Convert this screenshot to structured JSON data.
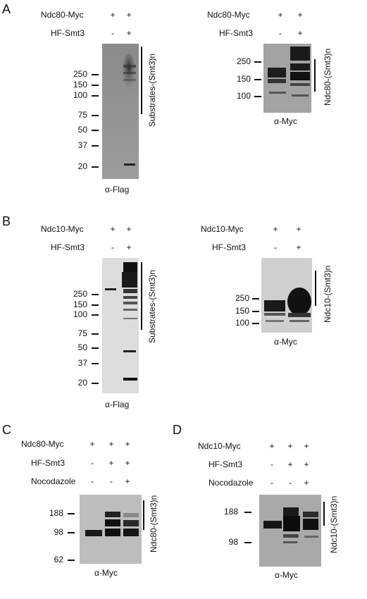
{
  "panels": {
    "A": {
      "letter": "A",
      "left": {
        "row1_label": "Ndc80-Myc",
        "row1_vals": [
          "+",
          "+"
        ],
        "row2_label": "HF-Smt3",
        "row2_vals": [
          "-",
          "+"
        ],
        "markers": [
          "250",
          "150",
          "100",
          "75",
          "50",
          "37",
          "20"
        ],
        "side_label": "Substrates-(Smt3)n",
        "antibody": "α-Flag"
      },
      "right": {
        "row1_label": "Ndc80-Myc",
        "row1_vals": [
          "+",
          "+"
        ],
        "row2_label": "HF-Smt3",
        "row2_vals": [
          "-",
          "+"
        ],
        "markers": [
          "250",
          "150",
          "100"
        ],
        "side_label": "Ndc80-(Smt3)n",
        "antibody": "α-Myc"
      }
    },
    "B": {
      "letter": "B",
      "left": {
        "row1_label": "Ndc10-Myc",
        "row1_vals": [
          "+",
          "+"
        ],
        "row2_label": "HF-Smt3",
        "row2_vals": [
          "-",
          "+"
        ],
        "markers": [
          "250",
          "150",
          "100",
          "75",
          "50",
          "37",
          "20"
        ],
        "side_label": "Substrates-(Smt3)n",
        "antibody": "α-Flag"
      },
      "right": {
        "row1_label": "Ndc10-Myc",
        "row1_vals": [
          "+",
          "+"
        ],
        "row2_label": "HF-Smt3",
        "row2_vals": [
          "-",
          "+"
        ],
        "markers": [
          "250",
          "150",
          "100"
        ],
        "side_label": "Ndc10-(Smt3)n",
        "antibody": "α-Myc"
      }
    },
    "C": {
      "letter": "C",
      "row1_label": "Ndc80-Myc",
      "row1_vals": [
        "+",
        "+",
        "+"
      ],
      "row2_label": "HF-Smt3",
      "row2_vals": [
        "-",
        "+",
        "+"
      ],
      "row3_label": "Nocodazole",
      "row3_vals": [
        "-",
        "-",
        "+"
      ],
      "markers": [
        "188",
        "98",
        "62"
      ],
      "side_label": "Ndc80-(Smt3)n",
      "antibody": "α-Myc"
    },
    "D": {
      "letter": "D",
      "row1_label": "Ndc10-Myc",
      "row1_vals": [
        "+",
        "+",
        "+"
      ],
      "row2_label": "HF-Smt3",
      "row2_vals": [
        "-",
        "+",
        "+"
      ],
      "row3_label": "Nocodazole",
      "row3_vals": [
        "-",
        "-",
        "+"
      ],
      "markers": [
        "188",
        "98"
      ],
      "side_label": "Ndc10-(Smt3)n",
      "antibody": "α-Myc"
    }
  }
}
